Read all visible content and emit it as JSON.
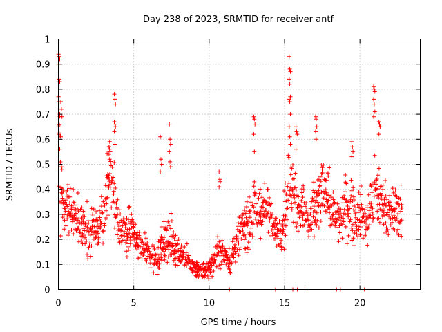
{
  "chart_data": {
    "type": "scatter",
    "title": "Day 238 of 2023, SRMTID for receiver antf",
    "xlabel": "GPS time / hours",
    "ylabel": "SRMTID / TECUs",
    "xlim": [
      0,
      24
    ],
    "ylim": [
      0,
      1
    ],
    "xticks": [
      0,
      5,
      10,
      15,
      20
    ],
    "yticks": [
      0,
      0.1,
      0.2,
      0.3,
      0.4,
      0.5,
      0.6,
      0.7,
      0.8,
      0.9,
      1
    ],
    "xtick_labels": [
      "0",
      "5",
      "10",
      "15",
      "20"
    ],
    "ytick_labels": [
      "0",
      "0.1",
      "0.2",
      "0.3",
      "0.4",
      "0.5",
      "0.6",
      "0.7",
      "0.8",
      "0.9",
      "1"
    ],
    "grid": true,
    "marker": "+",
    "color": "#ff0000",
    "series": [
      {
        "name": "SRMTID",
        "envelope": {
          "x": [
            0.0,
            0.1,
            0.3,
            0.6,
            1.0,
            1.5,
            2.0,
            2.5,
            3.0,
            3.4,
            3.6,
            3.8,
            4.2,
            4.8,
            5.2,
            5.6,
            6.0,
            6.5,
            7.0,
            7.4,
            7.8,
            8.2,
            8.6,
            9.0,
            9.4,
            9.8,
            10.2,
            10.6,
            11.0,
            11.4,
            11.8,
            12.2,
            12.6,
            13.0,
            13.5,
            14.0,
            14.4,
            14.8,
            15.2,
            15.5,
            15.8,
            16.2,
            16.6,
            17.0,
            17.4,
            17.8,
            18.2,
            18.6,
            19.0,
            19.5,
            20.0,
            20.5,
            21.0,
            21.5,
            22.0,
            22.5,
            22.8
          ],
          "center": [
            0.55,
            0.5,
            0.35,
            0.33,
            0.3,
            0.26,
            0.24,
            0.22,
            0.3,
            0.45,
            0.42,
            0.35,
            0.22,
            0.24,
            0.2,
            0.16,
            0.15,
            0.13,
            0.18,
            0.2,
            0.16,
            0.14,
            0.12,
            0.09,
            0.07,
            0.08,
            0.1,
            0.17,
            0.14,
            0.11,
            0.18,
            0.24,
            0.26,
            0.3,
            0.32,
            0.33,
            0.24,
            0.22,
            0.4,
            0.42,
            0.35,
            0.33,
            0.25,
            0.3,
            0.38,
            0.4,
            0.3,
            0.28,
            0.33,
            0.3,
            0.3,
            0.28,
            0.4,
            0.34,
            0.3,
            0.32,
            0.28
          ],
          "spread": [
            0.3,
            0.25,
            0.1,
            0.1,
            0.09,
            0.09,
            0.09,
            0.09,
            0.11,
            0.15,
            0.15,
            0.13,
            0.08,
            0.09,
            0.06,
            0.06,
            0.06,
            0.07,
            0.09,
            0.09,
            0.07,
            0.06,
            0.06,
            0.04,
            0.03,
            0.04,
            0.04,
            0.08,
            0.04,
            0.05,
            0.08,
            0.09,
            0.09,
            0.11,
            0.11,
            0.09,
            0.06,
            0.07,
            0.2,
            0.15,
            0.12,
            0.11,
            0.12,
            0.12,
            0.14,
            0.13,
            0.1,
            0.1,
            0.12,
            0.12,
            0.11,
            0.11,
            0.17,
            0.11,
            0.1,
            0.1,
            0.1
          ]
        },
        "spikes": [
          {
            "x": 0.05,
            "values": [
              0.94,
              0.93,
              0.92,
              0.9,
              0.84,
              0.83,
              0.77,
              0.75,
              0.7,
              0.65,
              0.62,
              0.56
            ]
          },
          {
            "x": 0.2,
            "values": [
              0.75,
              0.72,
              0.69,
              0.61,
              0.49,
              0.48
            ]
          },
          {
            "x": 3.75,
            "values": [
              0.78,
              0.76,
              0.74,
              0.67,
              0.66,
              0.65,
              0.63,
              0.58
            ]
          },
          {
            "x": 3.4,
            "values": [
              0.57,
              0.56,
              0.55,
              0.54,
              0.52
            ]
          },
          {
            "x": 6.8,
            "values": [
              0.61,
              0.52,
              0.5,
              0.47
            ]
          },
          {
            "x": 7.4,
            "values": [
              0.66,
              0.6,
              0.58,
              0.55,
              0.51,
              0.49
            ]
          },
          {
            "x": 13.0,
            "values": [
              0.69,
              0.68,
              0.66,
              0.62,
              0.55
            ]
          },
          {
            "x": 15.35,
            "values": [
              0.93,
              0.88,
              0.87,
              0.84,
              0.82,
              0.77,
              0.76,
              0.75,
              0.7,
              0.65,
              0.61,
              0.58
            ]
          },
          {
            "x": 15.8,
            "values": [
              0.65,
              0.63,
              0.62,
              0.56
            ]
          },
          {
            "x": 17.1,
            "values": [
              0.69,
              0.68,
              0.65,
              0.63,
              0.6
            ]
          },
          {
            "x": 19.5,
            "values": [
              0.59,
              0.57,
              0.55,
              0.53
            ]
          },
          {
            "x": 20.95,
            "values": [
              0.81,
              0.8,
              0.79,
              0.76,
              0.74,
              0.71,
              0.69
            ]
          },
          {
            "x": 21.3,
            "values": [
              0.67,
              0.66,
              0.65,
              0.62
            ]
          },
          {
            "x": 10.7,
            "values": [
              0.47,
              0.44,
              0.43,
              0.41
            ]
          }
        ],
        "zeros": [
          11.35,
          14.4,
          15.55,
          15.85,
          16.35,
          18.45,
          18.7,
          20.3
        ]
      }
    ]
  }
}
